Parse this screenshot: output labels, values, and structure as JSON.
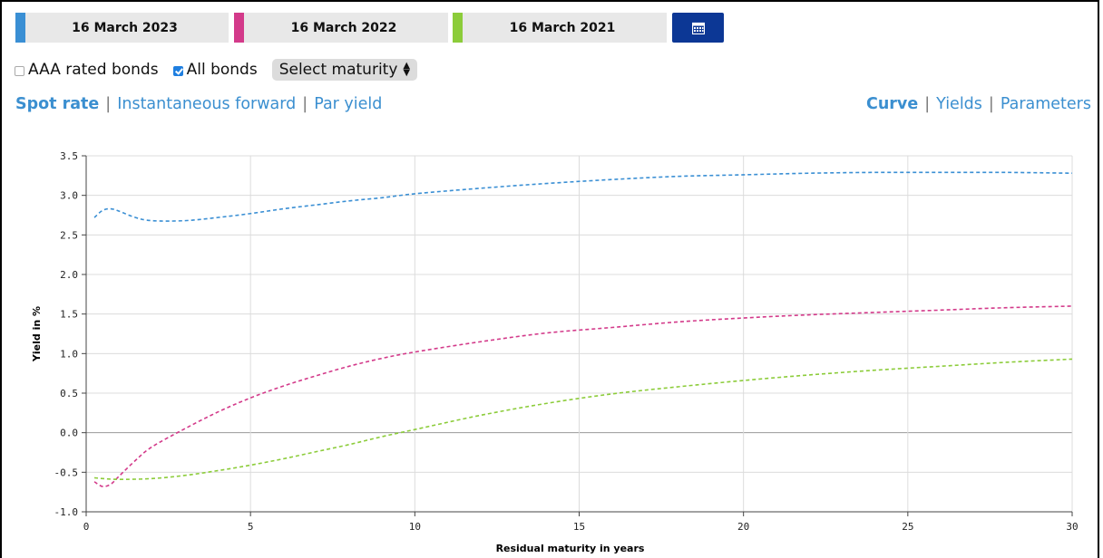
{
  "dates": [
    {
      "label": "16 March 2023",
      "color": "#3a8fd4"
    },
    {
      "label": "16 March 2022",
      "color": "#d33a8a"
    },
    {
      "label": "16 March 2021",
      "color": "#8ccc3a"
    }
  ],
  "calendar_icon": "calendar-icon",
  "filters": {
    "aaa_label": "AAA rated bonds",
    "aaa_checked": false,
    "all_label": "All bonds",
    "all_checked": true,
    "maturity_select": "Select maturity"
  },
  "curve_types": [
    "Spot rate",
    "Instantaneous forward",
    "Par yield"
  ],
  "curve_types_active": "Spot rate",
  "views": [
    "Curve",
    "Yields",
    "Parameters"
  ],
  "views_active": "Curve",
  "chart_data": {
    "type": "line",
    "xlabel": "Residual maturity in years",
    "ylabel": "Yield in %",
    "xlim": [
      0,
      30
    ],
    "ylim": [
      -1.0,
      3.5
    ],
    "xticks": [
      0,
      5,
      10,
      15,
      20,
      25,
      30
    ],
    "yticks": [
      -1.0,
      -0.5,
      0.0,
      0.5,
      1.0,
      1.5,
      2.0,
      2.5,
      3.0,
      3.5
    ],
    "grid": true,
    "line_style": "dashed",
    "series": [
      {
        "color": "#3a8fd4",
        "x": [
          0.25,
          0.5,
          0.75,
          1,
          1.5,
          2,
          3,
          4,
          5,
          6,
          7,
          8,
          9,
          10,
          12,
          14,
          16,
          18,
          20,
          22,
          24,
          26,
          28,
          30
        ],
        "y": [
          2.72,
          2.81,
          2.83,
          2.8,
          2.72,
          2.68,
          2.68,
          2.72,
          2.77,
          2.83,
          2.88,
          2.93,
          2.97,
          3.02,
          3.09,
          3.15,
          3.2,
          3.24,
          3.26,
          3.28,
          3.29,
          3.29,
          3.29,
          3.28
        ]
      },
      {
        "color": "#d33a8a",
        "x": [
          0.25,
          0.5,
          0.75,
          1,
          1.5,
          2,
          3,
          4,
          5,
          6,
          7,
          8,
          9,
          10,
          12,
          14,
          16,
          18,
          20,
          22,
          24,
          26,
          28,
          30
        ],
        "y": [
          -0.62,
          -0.68,
          -0.65,
          -0.55,
          -0.35,
          -0.18,
          0.05,
          0.26,
          0.44,
          0.59,
          0.72,
          0.84,
          0.94,
          1.02,
          1.15,
          1.26,
          1.33,
          1.4,
          1.45,
          1.49,
          1.52,
          1.55,
          1.58,
          1.6
        ]
      },
      {
        "color": "#8ccc3a",
        "x": [
          0.25,
          0.5,
          1,
          2,
          3,
          4,
          5,
          6,
          7,
          8,
          9,
          10,
          12,
          14,
          16,
          18,
          20,
          22,
          24,
          26,
          28,
          30
        ],
        "y": [
          -0.57,
          -0.58,
          -0.59,
          -0.58,
          -0.54,
          -0.48,
          -0.41,
          -0.33,
          -0.24,
          -0.15,
          -0.05,
          0.04,
          0.22,
          0.37,
          0.49,
          0.58,
          0.66,
          0.73,
          0.79,
          0.84,
          0.89,
          0.93
        ]
      }
    ]
  }
}
